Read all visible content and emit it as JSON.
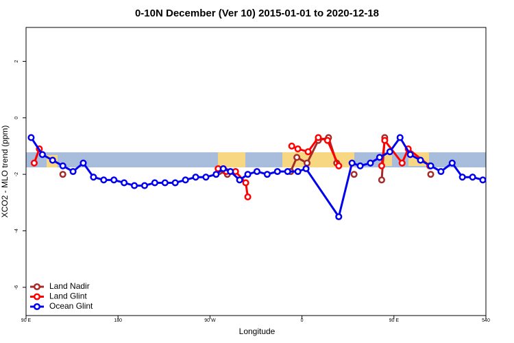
{
  "chart_data": {
    "type": "line",
    "title": "0-10N December (Ver 10)   2015-01-01 to 2020-12-18",
    "x_label": "Longitude",
    "y_label": "XCO2 - MLO trend (ppm)",
    "xlim": [
      90,
      540
    ],
    "ylim": [
      -7,
      3.2
    ],
    "xticks": [
      {
        "value": 90,
        "label": "90 E"
      },
      180,
      {
        "value": 270,
        "label": "90 W"
      },
      {
        "value": 360,
        "label": "0"
      },
      {
        "value": 450,
        "label": "90 E"
      },
      540
    ],
    "yticks": [
      -6,
      -4,
      -2,
      0,
      2
    ],
    "legend": "bottom-left",
    "series": [
      {
        "name": "Land Nadir",
        "color": "#a52a2a",
        "x": [
          126,
          null,
          279,
          287,
          null,
          349,
          355,
          365,
          376,
          386,
          394,
          null,
          411,
          null,
          438,
          441,
          null,
          486
        ],
        "values": [
          -2.0,
          null,
          -1.9,
          -2.0,
          null,
          -1.9,
          -1.4,
          -1.6,
          -0.8,
          -0.7,
          -1.6,
          null,
          -2.0,
          null,
          -2.2,
          -0.7,
          null,
          -2.0
        ]
      },
      {
        "name": "Land Glint",
        "color": "#ff0000",
        "x": [
          98,
          103,
          null,
          278,
          286,
          295,
          305,
          307,
          null,
          350,
          356,
          366,
          376,
          385,
          396,
          null,
          438,
          441,
          458,
          464,
          485
        ],
        "values": [
          -1.6,
          -1.1,
          null,
          -1.8,
          -1.9,
          -1.9,
          -2.3,
          -2.8,
          null,
          -1.0,
          -1.1,
          -1.2,
          -0.7,
          -0.8,
          -1.7,
          null,
          -1.7,
          -0.8,
          -1.6,
          -1.1,
          -1.7
        ]
      },
      {
        "name": "Ocean Glint",
        "color": "#0000ee",
        "x": [
          95,
          106,
          116,
          126,
          136,
          146,
          156,
          166,
          176,
          186,
          196,
          206,
          216,
          226,
          236,
          246,
          256,
          266,
          276,
          283,
          290,
          299,
          307,
          316,
          326,
          336,
          346,
          356,
          364,
          396,
          409,
          417,
          427,
          436,
          446,
          456,
          466,
          476,
          486,
          496,
          507,
          517,
          527,
          537
        ],
        "values": [
          -0.7,
          -1.3,
          -1.5,
          -1.7,
          -1.9,
          -1.6,
          -2.1,
          -2.2,
          -2.2,
          -2.3,
          -2.4,
          -2.4,
          -2.3,
          -2.3,
          -2.3,
          -2.2,
          -2.1,
          -2.1,
          -2.0,
          -1.8,
          -1.9,
          -2.2,
          -2.0,
          -1.9,
          -2.0,
          -1.9,
          -1.9,
          -1.9,
          -1.8,
          -3.5,
          -1.6,
          -1.7,
          -1.6,
          -1.4,
          -1.2,
          -0.7,
          -1.3,
          -1.5,
          -1.7,
          -1.9,
          -1.6,
          -2.1,
          -2.1,
          -2.2
        ]
      }
    ]
  }
}
